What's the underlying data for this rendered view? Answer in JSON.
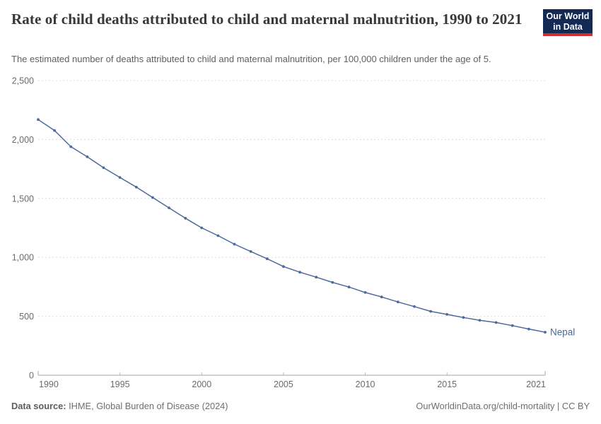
{
  "header": {
    "title": "Rate of child deaths attributed to child and maternal malnutrition, 1990 to 2021",
    "subtitle": "The estimated number of deaths attributed to child and maternal malnutrition, per 100,000 children under the age of 5.",
    "logo": {
      "line1": "Our World",
      "line2": "in Data",
      "bg_color": "#122a54",
      "accent_color": "#cf2d32"
    }
  },
  "chart_data": {
    "type": "line",
    "title": "Rate of child deaths attributed to child and maternal malnutrition, 1990 to 2021",
    "xlabel": "",
    "ylabel": "",
    "x": [
      1990,
      1991,
      1992,
      1993,
      1994,
      1995,
      1996,
      1997,
      1998,
      1999,
      2000,
      2001,
      2002,
      2003,
      2004,
      2005,
      2006,
      2007,
      2008,
      2009,
      2010,
      2011,
      2012,
      2013,
      2014,
      2015,
      2016,
      2017,
      2018,
      2019,
      2020,
      2021
    ],
    "series": [
      {
        "name": "Nepal",
        "color": "#4c6a9c",
        "values": [
          2169,
          2077,
          1939,
          1853,
          1760,
          1678,
          1596,
          1508,
          1420,
          1332,
          1250,
          1184,
          1112,
          1050,
          988,
          922,
          874,
          832,
          788,
          748,
          702,
          664,
          622,
          583,
          542,
          516,
          490,
          466,
          447,
          421,
          392,
          365
        ]
      }
    ],
    "ylim": [
      0,
      2500
    ],
    "xlim": [
      1990,
      2021
    ],
    "yticks": [
      0,
      500,
      1000,
      1500,
      2000,
      2500
    ],
    "ytick_labels": [
      "0",
      "500",
      "1,000",
      "1,500",
      "2,000",
      "2,500"
    ],
    "xticks": [
      1990,
      1995,
      2000,
      2005,
      2010,
      2015,
      2021
    ],
    "xtick_labels": [
      "1990",
      "1995",
      "2000",
      "2005",
      "2010",
      "2015",
      "2021"
    ],
    "grid": "horizontal-dashed",
    "legend_position": "end-of-line-label",
    "colors": {
      "grid": "#dcdcdc",
      "axis": "#a5a5a5",
      "tick_label": "#6b6b6b"
    }
  },
  "footer": {
    "source_label": "Data source:",
    "source_text": " IHME, Global Burden of Disease (2024)",
    "credit": "OurWorldinData.org/child-mortality | CC BY"
  }
}
